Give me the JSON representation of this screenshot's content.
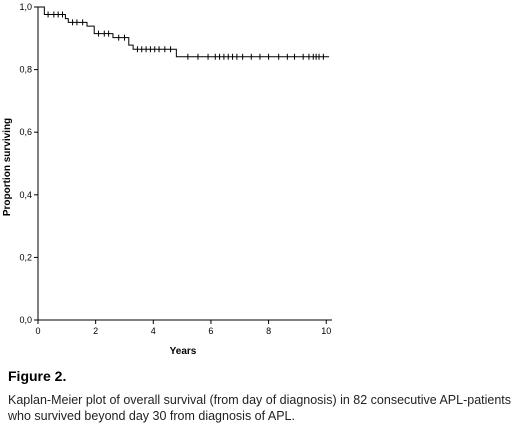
{
  "chart_data": {
    "type": "line",
    "subtype": "kaplan-meier",
    "xlabel": "Years",
    "ylabel": "Proportion surviving",
    "xlim": [
      0,
      10.2
    ],
    "ylim": [
      0,
      1.0
    ],
    "x_ticks": [
      0,
      2,
      4,
      6,
      8,
      10
    ],
    "y_ticks": [
      0.0,
      0.2,
      0.4,
      0.6,
      0.8,
      1.0
    ],
    "x_tick_labels": [
      "0",
      "2",
      "4",
      "6",
      "8",
      "10"
    ],
    "y_tick_labels": [
      "0,0",
      "0,2",
      "0,4",
      "0,6",
      "0,8",
      "1,0"
    ],
    "grid": false,
    "series": [
      {
        "steps": [
          [
            0,
            1.0
          ],
          [
            0.22,
            0.976
          ],
          [
            0.95,
            0.963
          ],
          [
            1.05,
            0.951
          ],
          [
            1.7,
            0.939
          ],
          [
            1.95,
            0.915
          ],
          [
            2.6,
            0.902
          ],
          [
            3.15,
            0.878
          ],
          [
            3.3,
            0.865
          ],
          [
            4.8,
            0.841
          ],
          [
            10.1,
            0.841
          ]
        ],
        "censored": [
          [
            0.35,
            0.976
          ],
          [
            0.55,
            0.976
          ],
          [
            0.7,
            0.976
          ],
          [
            0.85,
            0.976
          ],
          [
            1.2,
            0.951
          ],
          [
            1.35,
            0.951
          ],
          [
            1.55,
            0.951
          ],
          [
            2.1,
            0.915
          ],
          [
            2.3,
            0.915
          ],
          [
            2.45,
            0.915
          ],
          [
            2.8,
            0.902
          ],
          [
            3.0,
            0.902
          ],
          [
            3.45,
            0.865
          ],
          [
            3.6,
            0.865
          ],
          [
            3.75,
            0.865
          ],
          [
            3.9,
            0.865
          ],
          [
            4.05,
            0.865
          ],
          [
            4.2,
            0.865
          ],
          [
            4.4,
            0.865
          ],
          [
            4.6,
            0.865
          ],
          [
            5.2,
            0.841
          ],
          [
            5.55,
            0.841
          ],
          [
            5.9,
            0.841
          ],
          [
            6.15,
            0.841
          ],
          [
            6.3,
            0.841
          ],
          [
            6.45,
            0.841
          ],
          [
            6.6,
            0.841
          ],
          [
            6.75,
            0.841
          ],
          [
            6.9,
            0.841
          ],
          [
            7.1,
            0.841
          ],
          [
            7.4,
            0.841
          ],
          [
            7.7,
            0.841
          ],
          [
            8.0,
            0.841
          ],
          [
            8.35,
            0.841
          ],
          [
            8.65,
            0.841
          ],
          [
            8.9,
            0.841
          ],
          [
            9.2,
            0.841
          ],
          [
            9.4,
            0.841
          ],
          [
            9.55,
            0.841
          ],
          [
            9.65,
            0.841
          ],
          [
            9.75,
            0.841
          ],
          [
            9.9,
            0.841
          ]
        ]
      }
    ]
  },
  "caption": {
    "title": "Figure 2.",
    "text": "Kaplan-Meier plot of  overall survival (from day of diagnosis) in 82 consecutive APL-patients who survived beyond day 30 from diagnosis of APL."
  }
}
